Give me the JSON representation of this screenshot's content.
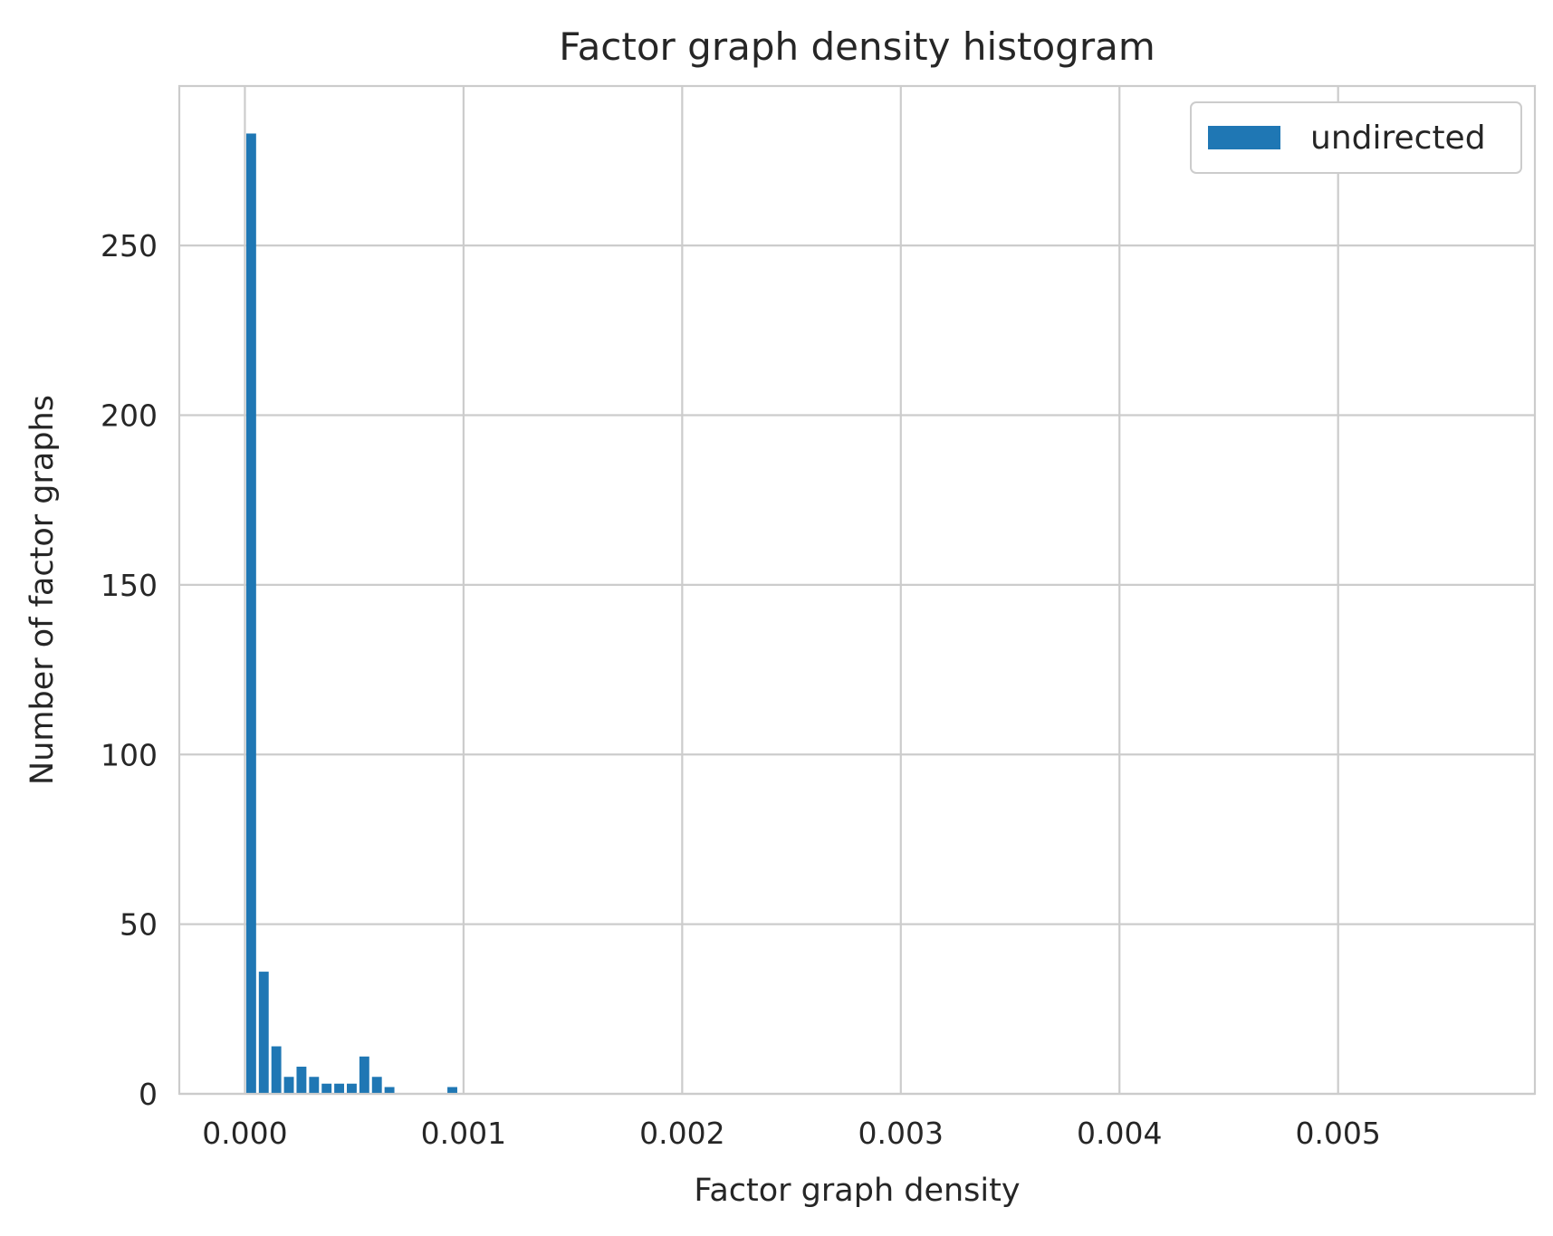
{
  "chart_data": {
    "type": "bar",
    "title": "Factor graph density histogram",
    "xlabel": "Factor graph density",
    "ylabel": "Number of factor graphs",
    "xlim": [
      -0.0003,
      0.0059
    ],
    "ylim": [
      0,
      297
    ],
    "xticks": [
      0.0,
      0.001,
      0.002,
      0.003,
      0.004,
      0.005
    ],
    "xtick_labels": [
      "0.000",
      "0.001",
      "0.002",
      "0.003",
      "0.004",
      "0.005"
    ],
    "yticks": [
      0,
      50,
      100,
      150,
      200,
      250
    ],
    "ytick_labels": [
      "0",
      "50",
      "100",
      "150",
      "200",
      "250"
    ],
    "grid": true,
    "legend": {
      "position": "top-right",
      "entries": [
        "undirected"
      ]
    },
    "bin_width": 5.75e-05,
    "series": [
      {
        "name": "undirected",
        "color": "#1f77b4",
        "bins": [
          {
            "x": 2.88e-05,
            "value": 283
          },
          {
            "x": 8.63e-05,
            "value": 36
          },
          {
            "x": 0.0001438,
            "value": 14
          },
          {
            "x": 0.0002013,
            "value": 5
          },
          {
            "x": 0.0002588,
            "value": 8
          },
          {
            "x": 0.0003163,
            "value": 5
          },
          {
            "x": 0.0003738,
            "value": 3
          },
          {
            "x": 0.0004313,
            "value": 3
          },
          {
            "x": 0.0004888,
            "value": 3
          },
          {
            "x": 0.0005463,
            "value": 11
          },
          {
            "x": 0.0006038,
            "value": 5
          },
          {
            "x": 0.0006613,
            "value": 2
          },
          {
            "x": 0.0009488,
            "value": 2
          }
        ]
      }
    ]
  }
}
